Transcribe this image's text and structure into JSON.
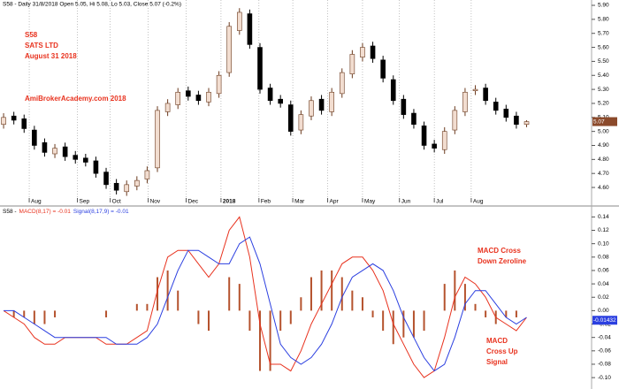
{
  "chart_data": [
    {
      "type": "candlestick",
      "title": "S58 - Daily 31/8/2018 Open 5.05, Hi 5.08, Lo 5.03, Close 5.07 (-0.2%)",
      "annotations": [
        [
          "S58",
          "SATS LTD",
          "August 31 2018"
        ],
        [
          "AmiBrokerAcademy.com  2018"
        ]
      ],
      "up_color": "#f2ddd0",
      "down_color": "#000000",
      "wick_color": "#6b3a1e",
      "open": [
        5.05,
        5.11,
        5.09,
        5.01,
        4.92,
        4.84,
        4.89,
        4.83,
        4.81,
        4.79,
        4.71,
        4.63,
        4.57,
        4.61,
        4.66,
        4.74,
        5.14,
        5.19,
        5.29,
        5.26,
        5.21,
        5.27,
        5.42,
        5.72,
        5.84,
        5.6,
        5.31,
        5.23,
        5.19,
        5.01,
        5.11,
        5.23,
        5.14,
        5.27,
        5.41,
        5.53,
        5.61,
        5.51,
        5.37,
        5.23,
        5.13,
        5.04,
        4.91,
        4.87,
        5.01,
        5.14,
        5.29,
        5.31,
        5.21,
        5.16,
        5.11,
        5.05
      ],
      "high": [
        5.13,
        5.14,
        5.12,
        5.04,
        4.95,
        4.91,
        4.92,
        4.86,
        4.84,
        4.82,
        4.74,
        4.66,
        4.65,
        4.68,
        4.75,
        5.18,
        5.23,
        5.31,
        5.32,
        5.29,
        5.31,
        5.43,
        5.78,
        5.88,
        5.87,
        5.63,
        5.34,
        5.26,
        5.22,
        5.15,
        5.25,
        5.26,
        5.31,
        5.45,
        5.58,
        5.63,
        5.64,
        5.54,
        5.4,
        5.26,
        5.16,
        5.07,
        4.94,
        5.03,
        5.18,
        5.31,
        5.33,
        5.34,
        5.24,
        5.19,
        5.14,
        5.08
      ],
      "low": [
        5.02,
        5.05,
        4.99,
        4.87,
        4.82,
        4.81,
        4.79,
        4.77,
        4.75,
        4.67,
        4.59,
        4.55,
        4.54,
        4.58,
        4.63,
        4.71,
        5.11,
        5.16,
        5.22,
        5.19,
        5.18,
        5.24,
        5.39,
        5.69,
        5.59,
        5.27,
        5.19,
        5.17,
        4.97,
        4.98,
        5.08,
        5.12,
        5.11,
        5.24,
        5.38,
        5.5,
        5.49,
        5.35,
        5.19,
        5.09,
        5.02,
        4.87,
        4.85,
        4.84,
        4.98,
        5.11,
        5.26,
        5.19,
        5.12,
        5.07,
        5.02,
        5.03
      ],
      "close": [
        5.1,
        5.08,
        5.02,
        4.9,
        4.85,
        4.88,
        4.82,
        4.8,
        4.78,
        4.7,
        4.62,
        4.58,
        4.62,
        4.65,
        4.72,
        5.15,
        5.2,
        5.28,
        5.25,
        5.22,
        5.28,
        5.4,
        5.75,
        5.85,
        5.62,
        5.3,
        5.22,
        5.2,
        5.0,
        5.12,
        5.22,
        5.15,
        5.28,
        5.42,
        5.55,
        5.6,
        5.52,
        5.38,
        5.22,
        5.12,
        5.05,
        4.9,
        4.88,
        5.0,
        5.15,
        5.28,
        5.3,
        5.22,
        5.15,
        5.1,
        5.05,
        5.07
      ],
      "last_value": {
        "value": 5.07,
        "label": "5.07"
      },
      "last_color": "#8b4a2b",
      "xlim": [
        -0.35,
        57.25
      ],
      "ylim": [
        4.474,
        5.938
      ],
      "xticks": [
        {
          "value": 2.5,
          "label": "Aug"
        },
        {
          "value": 7.2,
          "label": "Sep"
        },
        {
          "value": 10.4,
          "label": "Oct"
        },
        {
          "value": 14.1,
          "label": "Nov"
        },
        {
          "value": 17.8,
          "label": "Dec"
        },
        {
          "value": 21.2,
          "label": "2018"
        },
        {
          "value": 24.9,
          "label": "Feb"
        },
        {
          "value": 28.2,
          "label": "Mar"
        },
        {
          "value": 31.6,
          "label": "Apr"
        },
        {
          "value": 35,
          "label": "May"
        },
        {
          "value": 38.6,
          "label": "Jun"
        },
        {
          "value": 42,
          "label": "Jul"
        },
        {
          "value": 45.6,
          "label": "Aug"
        }
      ],
      "yticks": [
        {
          "value": 4.6,
          "label": "4.60"
        },
        {
          "value": 4.7,
          "label": "4.70"
        },
        {
          "value": 4.8,
          "label": "4.80"
        },
        {
          "value": 4.9,
          "label": "4.90"
        },
        {
          "value": 5.0,
          "label": "5.00"
        },
        {
          "value": 5.1,
          "label": "5.10"
        },
        {
          "value": 5.2,
          "label": "5.20"
        },
        {
          "value": 5.3,
          "label": "5.30"
        },
        {
          "value": 5.4,
          "label": "5.40"
        },
        {
          "value": 5.5,
          "label": "5.50"
        },
        {
          "value": 5.6,
          "label": "5.60"
        },
        {
          "value": 5.7,
          "label": "5.70"
        },
        {
          "value": 5.8,
          "label": "5.80"
        },
        {
          "value": 5.9,
          "label": "5.90"
        }
      ],
      "grid": true
    },
    {
      "type": "macd",
      "title": "S58 -",
      "annotations": [
        [
          "MACD Cross",
          "Down Zeroline"
        ],
        [
          "MACD",
          "Cross Up",
          "Signal"
        ]
      ],
      "histogram": {
        "color": "#b5532e",
        "values": [
          0,
          -0.01,
          -0.01,
          -0.02,
          -0.02,
          -0.01,
          0,
          0,
          0,
          0,
          -0.01,
          0,
          0,
          0.01,
          0.01,
          0.05,
          0.06,
          0.03,
          0,
          -0.02,
          -0.03,
          0,
          0.05,
          0.04,
          -0.03,
          -0.09,
          -0.09,
          -0.03,
          -0.02,
          0.02,
          0.05,
          0.06,
          0.06,
          0.05,
          0.03,
          0.02,
          -0.01,
          -0.03,
          -0.05,
          -0.04,
          -0.04,
          -0.03,
          0,
          0.04,
          0.06,
          0.04,
          0.01,
          -0.01,
          -0.02,
          -0.01,
          -0.01,
          0
        ]
      },
      "series": [
        {
          "name": "MACD(8,17) = -0.01",
          "color": "#e8321e",
          "values": [
            0,
            -0.01,
            -0.02,
            -0.04,
            -0.05,
            -0.05,
            -0.04,
            -0.04,
            -0.04,
            -0.04,
            -0.05,
            -0.05,
            -0.05,
            -0.04,
            -0.03,
            0.03,
            0.08,
            0.09,
            0.09,
            0.07,
            0.05,
            0.07,
            0.12,
            0.14,
            0.08,
            -0.02,
            -0.08,
            -0.08,
            -0.09,
            -0.06,
            -0.02,
            0.01,
            0.04,
            0.07,
            0.08,
            0.08,
            0.06,
            0.03,
            -0.02,
            -0.05,
            -0.08,
            -0.1,
            -0.09,
            -0.04,
            0.02,
            0.05,
            0.04,
            0.02,
            -0.01,
            -0.02,
            -0.03,
            -0.01
          ]
        },
        {
          "name": "Signal(8,17,9) = -0.01",
          "color": "#2b3fe0",
          "values": [
            0,
            0,
            -0.01,
            -0.02,
            -0.03,
            -0.04,
            -0.04,
            -0.04,
            -0.04,
            -0.04,
            -0.04,
            -0.05,
            -0.05,
            -0.05,
            -0.04,
            -0.02,
            0.02,
            0.06,
            0.09,
            0.09,
            0.08,
            0.07,
            0.07,
            0.1,
            0.11,
            0.07,
            0.01,
            -0.05,
            -0.07,
            -0.08,
            -0.07,
            -0.05,
            -0.02,
            0.02,
            0.05,
            0.06,
            0.07,
            0.06,
            0.03,
            -0.01,
            -0.04,
            -0.07,
            -0.09,
            -0.08,
            -0.04,
            0.01,
            0.03,
            0.03,
            0.01,
            -0.01,
            -0.02,
            -0.01
          ],
          "last_value": {
            "value": -0.01432,
            "label": "-0.01432"
          }
        }
      ],
      "xlim": [
        -0.35,
        57.25
      ],
      "ylim": [
        -0.117,
        0.155
      ],
      "yticks": [
        {
          "value": -0.1,
          "label": "-0.10"
        },
        {
          "value": -0.08,
          "label": "-0.08"
        },
        {
          "value": -0.06,
          "label": "-0.06"
        },
        {
          "value": -0.04,
          "label": "-0.04"
        },
        {
          "value": -0.02,
          "label": "-0.02"
        },
        {
          "value": 0,
          "label": "0.00"
        },
        {
          "value": 0.02,
          "label": "0.02"
        },
        {
          "value": 0.04,
          "label": "0.04"
        },
        {
          "value": 0.06,
          "label": "0.06"
        },
        {
          "value": 0.08,
          "label": "0.08"
        },
        {
          "value": 0.1,
          "label": "0.10"
        },
        {
          "value": 0.12,
          "label": "0.12"
        },
        {
          "value": 0.14,
          "label": "0.14"
        }
      ]
    }
  ]
}
